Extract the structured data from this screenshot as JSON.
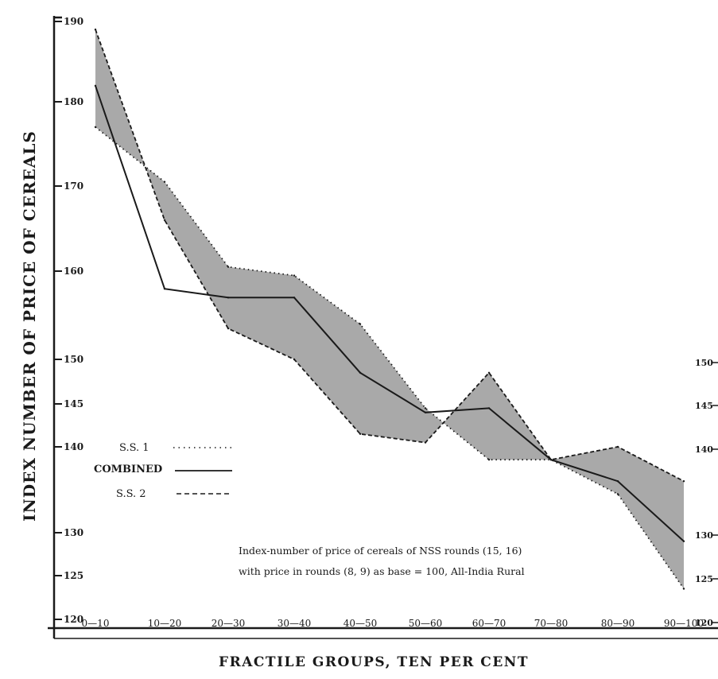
{
  "chart_data": {
    "type": "line",
    "title": "",
    "xlabel": "FRACTILE GROUPS, TEN PER CENT",
    "ylabel": "INDEX NUMBER OF PRICE OF CEREALS",
    "categories": [
      "0—10",
      "10—20",
      "20—30",
      "30—40",
      "40—50",
      "50—60",
      "60—70",
      "70—80",
      "80—90",
      "90—100"
    ],
    "series": [
      {
        "name": "S.S. 1",
        "style": "dotted",
        "values": [
          177,
          170.5,
          160.5,
          159.5,
          154,
          144.5,
          138.5,
          138.5,
          134.5,
          123.5
        ]
      },
      {
        "name": "COMBINED",
        "style": "solid",
        "values": [
          182,
          158,
          157,
          157,
          148.5,
          144,
          144.5,
          138.5,
          136,
          129
        ]
      },
      {
        "name": "S.S. 2",
        "style": "dashed",
        "values": [
          189,
          166,
          153.5,
          150,
          141.5,
          140.5,
          148.5,
          138.5,
          140,
          136
        ]
      }
    ],
    "ylim": [
      120,
      190
    ],
    "yticks": [
      "120",
      "125",
      "130",
      "140",
      "145",
      "150",
      "160",
      "170",
      "180",
      "190"
    ],
    "right_yticks": [
      "120",
      "125",
      "130",
      "140",
      "145",
      "150"
    ],
    "legend_position": "left",
    "annotation_lines": [
      "Index-number of price of cereals of NSS rounds (15, 16)",
      "with price in rounds (8, 9) as base = 100, All-India Rural"
    ],
    "shade_color": "#9a9a9a",
    "line_color": "#1a1a1a"
  }
}
